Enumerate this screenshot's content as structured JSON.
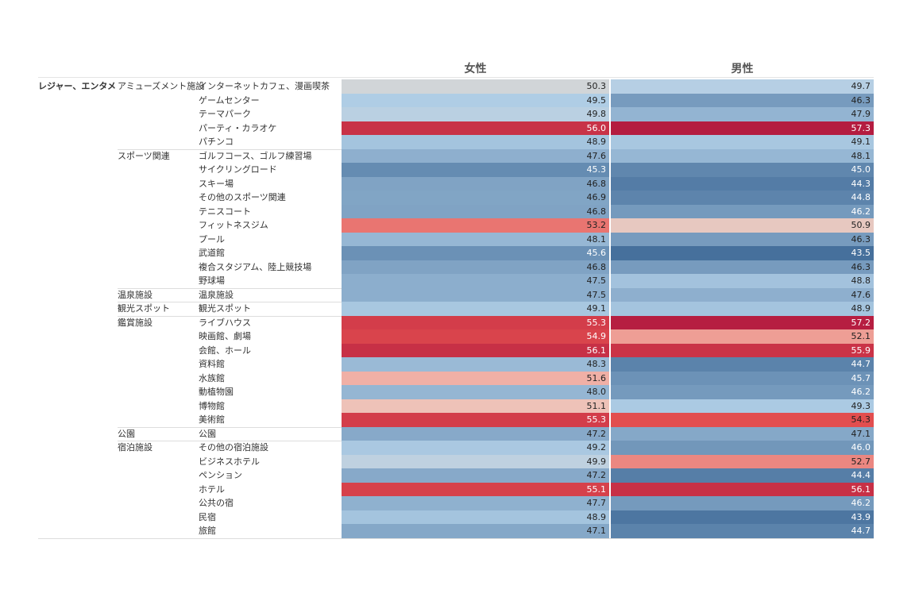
{
  "columns": [
    "女性",
    "男性"
  ],
  "groups": [
    {
      "label": "レジャー、エンタメ",
      "subgroups": [
        {
          "label": "アミューズメント施設",
          "rows": [
            {
              "label": "インターネットカフェ、漫画喫茶",
              "values": [
                50.3,
                49.7
              ]
            },
            {
              "label": "ゲームセンター",
              "values": [
                49.5,
                46.3
              ]
            },
            {
              "label": "テーマパーク",
              "values": [
                49.8,
                47.9
              ]
            },
            {
              "label": "パーティ・カラオケ",
              "values": [
                56,
                57.3
              ],
              "value_labels": [
                "56.0",
                "57.3"
              ]
            },
            {
              "label": "パチンコ",
              "values": [
                48.9,
                49.1
              ]
            }
          ]
        },
        {
          "label": "スポーツ関連",
          "rows": [
            {
              "label": "ゴルフコース、ゴルフ練習場",
              "values": [
                47.6,
                48.1
              ]
            },
            {
              "label": "サイクリングロード",
              "values": [
                45.3,
                45
              ],
              "value_labels": [
                "45.3",
                "45.0"
              ]
            },
            {
              "label": "スキー場",
              "values": [
                46.8,
                44.3
              ]
            },
            {
              "label": "その他のスポーツ関連",
              "values": [
                46.9,
                44.8
              ]
            },
            {
              "label": "テニスコート",
              "values": [
                46.8,
                46.2
              ]
            },
            {
              "label": "フィットネスジム",
              "values": [
                53.2,
                50.9
              ]
            },
            {
              "label": "プール",
              "values": [
                48.1,
                46.3
              ]
            },
            {
              "label": "武道館",
              "values": [
                45.6,
                43.5
              ]
            },
            {
              "label": "複合スタジアム、陸上競技場",
              "values": [
                46.8,
                46.3
              ]
            },
            {
              "label": "野球場",
              "values": [
                47.5,
                48.8
              ]
            }
          ]
        },
        {
          "label": "温泉施設",
          "rows": [
            {
              "label": "温泉施設",
              "values": [
                47.5,
                47.6
              ]
            }
          ]
        },
        {
          "label": "観光スポット",
          "rows": [
            {
              "label": "観光スポット",
              "values": [
                49.1,
                48.9
              ]
            }
          ]
        },
        {
          "label": "鑑賞施設",
          "rows": [
            {
              "label": "ライブハウス",
              "values": [
                55.3,
                57.2
              ]
            },
            {
              "label": "映画館、劇場",
              "values": [
                54.9,
                52.1
              ]
            },
            {
              "label": "会館、ホール",
              "values": [
                56.1,
                55.9
              ]
            },
            {
              "label": "資料館",
              "values": [
                48.3,
                44.7
              ]
            },
            {
              "label": "水族館",
              "values": [
                51.6,
                45.7
              ]
            },
            {
              "label": "動植物園",
              "values": [
                48,
                46.2
              ],
              "value_labels": [
                "48.0",
                "46.2"
              ]
            },
            {
              "label": "博物館",
              "values": [
                51.1,
                49.3
              ]
            },
            {
              "label": "美術館",
              "values": [
                55.3,
                54.3
              ]
            }
          ]
        },
        {
          "label": "公園",
          "rows": [
            {
              "label": "公園",
              "values": [
                47.2,
                47.1
              ]
            }
          ]
        },
        {
          "label": "宿泊施設",
          "rows": [
            {
              "label": "その他の宿泊施設",
              "values": [
                49.2,
                46
              ],
              "value_labels": [
                "49.2",
                "46.0"
              ]
            },
            {
              "label": "ビジネスホテル",
              "values": [
                49.9,
                52.7
              ]
            },
            {
              "label": "ペンション",
              "values": [
                47.2,
                44.4
              ]
            },
            {
              "label": "ホテル",
              "values": [
                55.1,
                56.1
              ]
            },
            {
              "label": "公共の宿",
              "values": [
                47.7,
                46.2
              ]
            },
            {
              "label": "民宿",
              "values": [
                48.9,
                43.9
              ]
            },
            {
              "label": "旅館",
              "values": [
                47.1,
                44.7
              ]
            }
          ]
        }
      ]
    }
  ]
}
